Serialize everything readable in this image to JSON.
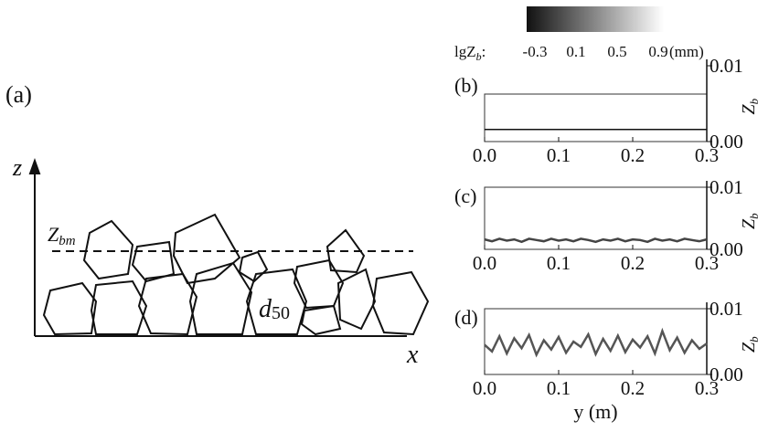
{
  "schematic": {
    "panel_label": "(a)",
    "z_label": "z",
    "zbm_main": "Z",
    "zbm_sub": "bm",
    "x_label": "x",
    "d_main": "d",
    "d_sub": "50"
  },
  "colorbar": {
    "label_main": "lgZ",
    "label_sub": "b",
    "label_colon": ":",
    "ticks": [
      -0.3,
      0.1,
      0.5,
      0.9
    ],
    "unit": "(mm)"
  },
  "chart_data": [
    {
      "type": "line",
      "panel_label": "(b)",
      "y_label_main": "Z",
      "y_label_sub": "b",
      "xlim": [
        0,
        0.3
      ],
      "ylim": [
        0,
        0.01
      ],
      "xticks": [
        {
          "value": 0,
          "label": "0.0"
        },
        {
          "value": 0.1,
          "label": "0.1"
        },
        {
          "value": 0.2,
          "label": "0.2"
        },
        {
          "value": 0.3,
          "label": "0.3"
        }
      ],
      "yticks": [
        {
          "value": 0,
          "label": "0.00"
        },
        {
          "value": 0.01,
          "label": "0.01"
        }
      ],
      "x": [
        0,
        0.3
      ],
      "series": [
        {
          "color": "#111111",
          "values": [
            0.0016,
            0.0016
          ]
        }
      ]
    },
    {
      "type": "line",
      "panel_label": "(c)",
      "y_label_main": "Z",
      "y_label_sub": "b",
      "xlim": [
        0,
        0.3
      ],
      "ylim": [
        0,
        0.01
      ],
      "xticks": [
        {
          "value": 0,
          "label": "0.0"
        },
        {
          "value": 0.1,
          "label": "0.1"
        },
        {
          "value": 0.2,
          "label": "0.2"
        },
        {
          "value": 0.3,
          "label": "0.3"
        }
      ],
      "yticks": [
        {
          "value": 0,
          "label": "0.00"
        },
        {
          "value": 0.01,
          "label": "0.01"
        }
      ],
      "x": [
        0,
        0.01,
        0.02,
        0.03,
        0.04,
        0.05,
        0.06,
        0.07,
        0.08,
        0.09,
        0.1,
        0.11,
        0.12,
        0.13,
        0.14,
        0.15,
        0.16,
        0.17,
        0.18,
        0.19,
        0.2,
        0.21,
        0.22,
        0.23,
        0.24,
        0.25,
        0.26,
        0.27,
        0.28,
        0.29,
        0.3
      ],
      "series": [
        {
          "color": "#444444",
          "values": [
            0.0016,
            0.0013,
            0.0017,
            0.0014,
            0.0016,
            0.0012,
            0.0017,
            0.0015,
            0.0013,
            0.0017,
            0.0014,
            0.0016,
            0.0013,
            0.0017,
            0.0015,
            0.0012,
            0.0016,
            0.0014,
            0.0017,
            0.0013,
            0.0016,
            0.0015,
            0.0012,
            0.0017,
            0.0014,
            0.0016,
            0.0013,
            0.0017,
            0.0015,
            0.0013,
            0.0016
          ]
        }
      ]
    },
    {
      "type": "line",
      "panel_label": "(d)",
      "y_label_main": "Z",
      "y_label_sub": "b",
      "x_label": "y (m)",
      "xlim": [
        0,
        0.3
      ],
      "ylim": [
        0,
        0.01
      ],
      "xticks": [
        {
          "value": 0,
          "label": "0.0"
        },
        {
          "value": 0.1,
          "label": "0.1"
        },
        {
          "value": 0.2,
          "label": "0.2"
        },
        {
          "value": 0.3,
          "label": "0.3"
        }
      ],
      "yticks": [
        {
          "value": 0,
          "label": "0.00"
        },
        {
          "value": 0.01,
          "label": "0.01"
        }
      ],
      "x": [
        0,
        0.01,
        0.02,
        0.03,
        0.04,
        0.05,
        0.06,
        0.07,
        0.08,
        0.09,
        0.1,
        0.11,
        0.12,
        0.13,
        0.14,
        0.15,
        0.16,
        0.17,
        0.18,
        0.19,
        0.2,
        0.21,
        0.22,
        0.23,
        0.24,
        0.25,
        0.26,
        0.27,
        0.28,
        0.29,
        0.3
      ],
      "series": [
        {
          "color": "#555555",
          "values": [
            0.0045,
            0.0035,
            0.0058,
            0.0032,
            0.0055,
            0.004,
            0.006,
            0.003,
            0.0052,
            0.0038,
            0.0057,
            0.0033,
            0.005,
            0.0042,
            0.0061,
            0.0031,
            0.0054,
            0.0036,
            0.0059,
            0.0034,
            0.0053,
            0.0041,
            0.0058,
            0.0032,
            0.0066,
            0.0037,
            0.0056,
            0.0033,
            0.0052,
            0.0039,
            0.0047
          ]
        }
      ]
    }
  ]
}
